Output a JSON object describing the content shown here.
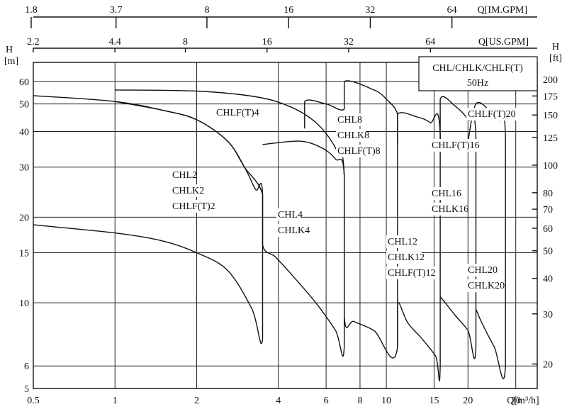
{
  "chart_data": {
    "type": "line",
    "title": "",
    "x_scale": "log",
    "y_scale": "log",
    "xlim": [
      0.5,
      36
    ],
    "ylim": [
      5,
      70
    ],
    "x_ticks": [
      {
        "value": 0.5,
        "label": "0.5"
      },
      {
        "value": 1,
        "label": "1"
      },
      {
        "value": 2,
        "label": "2"
      },
      {
        "value": 4,
        "label": "4"
      },
      {
        "value": 6,
        "label": "6"
      },
      {
        "value": 8,
        "label": "8"
      },
      {
        "value": 10,
        "label": "10"
      },
      {
        "value": 15,
        "label": "15"
      },
      {
        "value": 20,
        "label": "20"
      },
      {
        "value": 30,
        "label": "30"
      }
    ],
    "x_unit_label": "Q[m³/h]",
    "y_ticks": [
      {
        "value": 5,
        "label": "5"
      },
      {
        "value": 6,
        "label": "6"
      },
      {
        "value": 10,
        "label": "10"
      },
      {
        "value": 15,
        "label": "15"
      },
      {
        "value": 20,
        "label": "20"
      },
      {
        "value": 30,
        "label": "30"
      },
      {
        "value": 40,
        "label": "40"
      },
      {
        "value": 50,
        "label": "50"
      },
      {
        "value": 60,
        "label": "60"
      }
    ],
    "y_unit_label_top": "H",
    "y_unit_label_bottom": "[m]",
    "y2_unit_label_top": "H",
    "y2_unit_label_bottom": "[ft]",
    "y2_ticks": [
      {
        "value": 20,
        "label": "20"
      },
      {
        "value": 30,
        "label": "30"
      },
      {
        "value": 40,
        "label": "40"
      },
      {
        "value": 50,
        "label": "50"
      },
      {
        "value": 60,
        "label": "60"
      },
      {
        "value": 70,
        "label": "70"
      },
      {
        "value": 80,
        "label": "80"
      },
      {
        "value": 100,
        "label": "100"
      },
      {
        "value": 125,
        "label": "125"
      },
      {
        "value": 150,
        "label": "150"
      },
      {
        "value": 175,
        "label": "175"
      },
      {
        "value": 200,
        "label": "200"
      }
    ],
    "us_gpm_label": "Q[US.GPM]",
    "us_gpm_ticks": [
      {
        "value": 2.2,
        "label": "2.2"
      },
      {
        "value": 4.4,
        "label": "4.4"
      },
      {
        "value": 8,
        "label": "8"
      },
      {
        "value": 16,
        "label": "16"
      },
      {
        "value": 32,
        "label": "32"
      },
      {
        "value": 64,
        "label": "64"
      }
    ],
    "im_gpm_label": "Q[IM.GPM]",
    "im_gpm_ticks": [
      {
        "value": 1.8,
        "label": "1.8"
      },
      {
        "value": 3.7,
        "label": "3.7"
      },
      {
        "value": 8,
        "label": "8"
      },
      {
        "value": 16,
        "label": "16"
      },
      {
        "value": 32,
        "label": "32"
      },
      {
        "value": 64,
        "label": "64"
      }
    ],
    "legend_box": {
      "line1": "CHL/CHLK/CHLF(T)",
      "line2": "50Hz"
    },
    "regions": [
      {
        "name": "CHL2",
        "outline": [
          [
            0.5,
            53.5
          ],
          [
            1,
            51
          ],
          [
            1.5,
            47.5
          ],
          [
            2,
            44
          ],
          [
            2.6,
            37
          ],
          [
            3.0,
            30
          ],
          [
            3.3,
            25
          ],
          [
            3.5,
            24
          ],
          [
            3.5,
            7.5
          ],
          [
            3.2,
            9.5
          ],
          [
            2.6,
            13
          ],
          [
            2,
            15
          ],
          [
            1.5,
            16.5
          ],
          [
            1,
            17.6
          ],
          [
            0.5,
            18.8
          ]
        ]
      },
      {
        "name": "CHL4",
        "outline": [
          [
            1,
            56
          ],
          [
            2,
            55.5
          ],
          [
            3.3,
            53
          ],
          [
            4.4,
            49
          ],
          [
            5.5,
            43
          ],
          [
            6.5,
            35
          ],
          [
            7,
            28
          ],
          [
            7,
            7
          ],
          [
            6.5,
            8
          ],
          [
            5.5,
            10
          ],
          [
            4.5,
            12.5
          ],
          [
            3.9,
            14.5
          ],
          [
            3.5,
            16
          ],
          [
            3.5,
            24
          ],
          [
            3.0,
            30
          ],
          [
            2.6,
            37
          ],
          [
            2,
            44
          ],
          [
            1.5,
            47.5
          ],
          [
            1,
            51
          ]
        ]
      },
      {
        "name": "CHL8",
        "outline": [
          [
            5,
            41
          ],
          [
            5,
            51
          ],
          [
            6,
            50
          ],
          [
            7,
            48
          ],
          [
            7,
            60
          ],
          [
            9,
            56
          ],
          [
            10,
            52
          ],
          [
            11,
            46
          ],
          [
            11,
            36
          ],
          [
            11,
            7
          ],
          [
            9,
            8
          ],
          [
            7.6,
            8.6
          ],
          [
            7,
            9
          ],
          [
            7,
            28
          ],
          [
            6.5,
            32
          ],
          [
            5.8,
            35
          ],
          [
            4.8,
            37
          ],
          [
            3.5,
            36
          ]
        ]
      },
      {
        "name": "CHL12",
        "outline": [
          [
            11,
            36
          ],
          [
            11,
            46
          ],
          [
            13,
            45
          ],
          [
            14.5,
            43
          ],
          [
            15.8,
            39
          ],
          [
            15.8,
            6
          ],
          [
            15.2,
            6.5
          ],
          [
            13.5,
            7.5
          ],
          [
            12,
            8.5
          ],
          [
            11,
            10
          ],
          [
            11,
            7
          ]
        ]
      },
      {
        "name": "CHL16",
        "outline": [
          [
            15.8,
            34
          ],
          [
            15.8,
            52
          ],
          [
            18,
            49
          ],
          [
            20,
            44
          ],
          [
            21.4,
            38
          ],
          [
            21.4,
            7
          ],
          [
            20,
            8
          ],
          [
            18,
            9
          ],
          [
            16.5,
            10
          ],
          [
            15.8,
            10.5
          ]
        ]
      },
      {
        "name": "CHL20",
        "outline": [
          [
            20,
            37
          ],
          [
            21.4,
            50
          ],
          [
            24,
            47.5
          ],
          [
            26,
            44
          ],
          [
            27.5,
            38
          ],
          [
            27.5,
            6
          ],
          [
            25,
            7
          ],
          [
            22.5,
            8.5
          ],
          [
            21.4,
            9.5
          ]
        ]
      }
    ],
    "labels": [
      {
        "lines": [
          "CHL2",
          "CHLK2",
          "CHLF(T)2"
        ]
      },
      {
        "lines": [
          "CHLF(T)4"
        ]
      },
      {
        "lines": [
          "CHL4",
          "CHLK4"
        ]
      },
      {
        "lines": [
          "CHL8",
          "CHLK8",
          "CHLF(T)8"
        ]
      },
      {
        "lines": [
          "CHL12",
          "CHLK12",
          "CHLF(T)12"
        ]
      },
      {
        "lines": [
          "CHLF(T)16"
        ]
      },
      {
        "lines": [
          "CHL16",
          "CHLK16"
        ]
      },
      {
        "lines": [
          "CHLF(T)20"
        ]
      },
      {
        "lines": [
          "CHL20",
          "CHLK20"
        ]
      }
    ],
    "grid": true
  }
}
